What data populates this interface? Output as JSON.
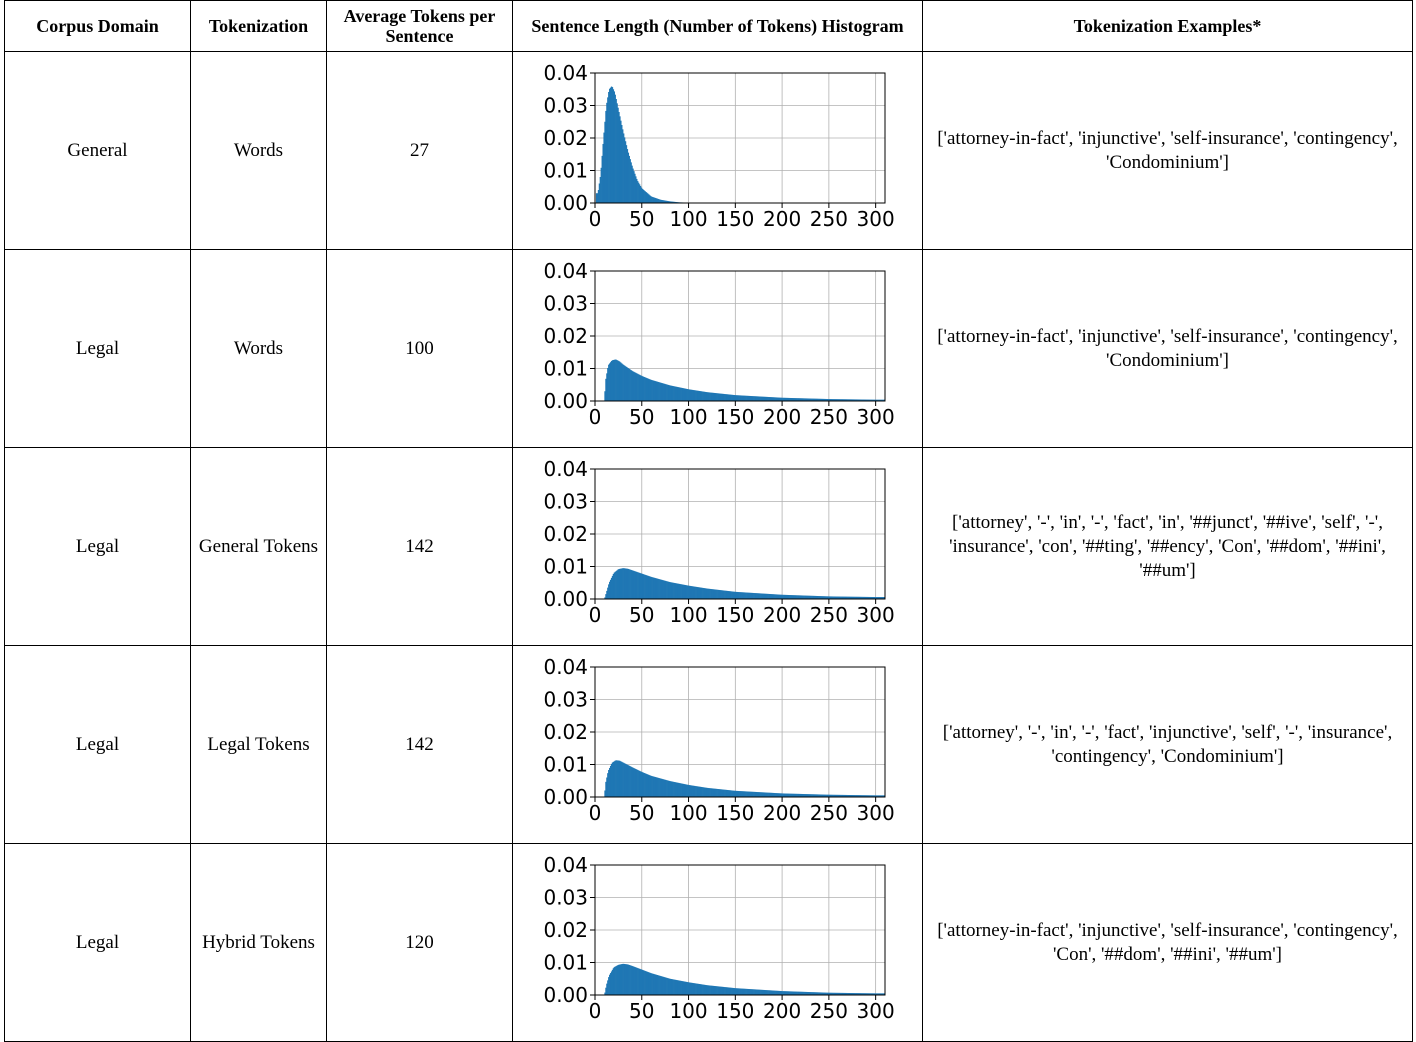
{
  "table": {
    "headers": [
      "Corpus Domain",
      "Tokenization",
      "Average Tokens per Sentence",
      "Sentence Length (Number of Tokens) Histogram",
      "Tokenization Examples*"
    ],
    "rows": [
      {
        "domain": "General",
        "tokenization": "Words",
        "avg_tokens": "27",
        "examples": "['attorney-in-fact', 'injunctive', 'self-insurance', 'contingency', 'Condominium']"
      },
      {
        "domain": "Legal",
        "tokenization": "Words",
        "avg_tokens": "100",
        "examples": "['attorney-in-fact', 'injunctive', 'self-insurance', 'contingency', 'Condominium']"
      },
      {
        "domain": "Legal",
        "tokenization": "General Tokens",
        "avg_tokens": "142",
        "examples": "['attorney', '-', 'in', '-', 'fact', 'in', '##junct', '##ive', 'self', '-', 'insurance', 'con', '##ting', '##ency', 'Con', '##dom', '##ini', '##um']"
      },
      {
        "domain": "Legal",
        "tokenization": "Legal Tokens",
        "avg_tokens": "142",
        "examples": "['attorney', '-', 'in', '-', 'fact', 'injunctive', 'self', '-', 'insurance', 'contingency', 'Condominium']"
      },
      {
        "domain": "Legal",
        "tokenization": "Hybrid Tokens",
        "avg_tokens": "120",
        "examples": "['attorney-in-fact', 'injunctive', 'self-insurance', 'contingency', 'Con', '##dom', '##ini', '##um']"
      }
    ]
  },
  "chart_data": [
    {
      "type": "bar",
      "xlim": [
        0,
        310
      ],
      "ylim": [
        0,
        0.04
      ],
      "grid": true,
      "x_ticks": [
        0,
        50,
        100,
        150,
        200,
        250,
        300
      ],
      "y_ticks": [
        0.0,
        0.01,
        0.02,
        0.03,
        0.04
      ],
      "y_tick_labels": [
        "0.00",
        "0.01",
        "0.02",
        "0.03",
        "0.04"
      ],
      "color": "#1f77b4",
      "x": [
        3,
        6,
        9,
        12,
        15,
        18,
        21,
        24,
        27,
        30,
        35,
        40,
        45,
        50,
        60,
        70,
        80,
        90,
        100,
        120,
        310
      ],
      "values": [
        0.003,
        0.009,
        0.02,
        0.03,
        0.035,
        0.036,
        0.034,
        0.03,
        0.026,
        0.022,
        0.016,
        0.011,
        0.007,
        0.0045,
        0.002,
        0.001,
        0.0005,
        0.0002,
        0.0001,
        0.0,
        0.0
      ]
    },
    {
      "type": "bar",
      "xlim": [
        0,
        310
      ],
      "ylim": [
        0,
        0.04
      ],
      "grid": true,
      "x_ticks": [
        0,
        50,
        100,
        150,
        200,
        250,
        300
      ],
      "y_ticks": [
        0.0,
        0.01,
        0.02,
        0.03,
        0.04
      ],
      "y_tick_labels": [
        "0.00",
        "0.01",
        "0.02",
        "0.03",
        "0.04"
      ],
      "color": "#1f77b4",
      "x": [
        10,
        11,
        14,
        18,
        22,
        26,
        30,
        40,
        50,
        60,
        80,
        100,
        120,
        150,
        200,
        250,
        300,
        310
      ],
      "values": [
        0.0,
        0.006,
        0.011,
        0.0125,
        0.0128,
        0.0122,
        0.0112,
        0.0092,
        0.0077,
        0.0065,
        0.0048,
        0.0036,
        0.0027,
        0.0018,
        0.001,
        0.0006,
        0.0004,
        0.0004
      ]
    },
    {
      "type": "bar",
      "xlim": [
        0,
        310
      ],
      "ylim": [
        0,
        0.04
      ],
      "grid": true,
      "x_ticks": [
        0,
        50,
        100,
        150,
        200,
        250,
        300
      ],
      "y_ticks": [
        0.0,
        0.01,
        0.02,
        0.03,
        0.04
      ],
      "y_tick_labels": [
        "0.00",
        "0.01",
        "0.02",
        "0.03",
        "0.04"
      ],
      "color": "#1f77b4",
      "x": [
        10,
        12,
        15,
        20,
        25,
        30,
        35,
        40,
        50,
        60,
        80,
        100,
        120,
        150,
        200,
        250,
        300,
        310
      ],
      "values": [
        0.0,
        0.002,
        0.005,
        0.008,
        0.0092,
        0.0095,
        0.0093,
        0.0088,
        0.0078,
        0.0068,
        0.0052,
        0.0041,
        0.0032,
        0.0022,
        0.0013,
        0.0008,
        0.0006,
        0.0006
      ]
    },
    {
      "type": "bar",
      "xlim": [
        0,
        310
      ],
      "ylim": [
        0,
        0.04
      ],
      "grid": true,
      "x_ticks": [
        0,
        50,
        100,
        150,
        200,
        250,
        300
      ],
      "y_ticks": [
        0.0,
        0.01,
        0.02,
        0.03,
        0.04
      ],
      "y_tick_labels": [
        "0.00",
        "0.01",
        "0.02",
        "0.03",
        "0.04"
      ],
      "color": "#1f77b4",
      "x": [
        10,
        11,
        14,
        18,
        22,
        26,
        30,
        40,
        50,
        60,
        80,
        100,
        120,
        150,
        200,
        250,
        300,
        310
      ],
      "values": [
        0.0,
        0.004,
        0.008,
        0.0105,
        0.0113,
        0.0112,
        0.0106,
        0.0091,
        0.0077,
        0.0065,
        0.0049,
        0.0037,
        0.0028,
        0.0019,
        0.0011,
        0.0007,
        0.0005,
        0.0005
      ]
    },
    {
      "type": "bar",
      "xlim": [
        0,
        310
      ],
      "ylim": [
        0,
        0.04
      ],
      "grid": true,
      "x_ticks": [
        0,
        50,
        100,
        150,
        200,
        250,
        300
      ],
      "y_ticks": [
        0.0,
        0.01,
        0.02,
        0.03,
        0.04
      ],
      "y_tick_labels": [
        "0.00",
        "0.01",
        "0.02",
        "0.03",
        "0.04"
      ],
      "color": "#1f77b4",
      "x": [
        10,
        12,
        15,
        20,
        25,
        30,
        35,
        40,
        50,
        60,
        80,
        100,
        120,
        150,
        200,
        250,
        300,
        310
      ],
      "values": [
        0.0,
        0.003,
        0.006,
        0.0085,
        0.0093,
        0.0096,
        0.0094,
        0.0089,
        0.0078,
        0.0067,
        0.005,
        0.0039,
        0.003,
        0.0021,
        0.0012,
        0.0007,
        0.0005,
        0.0005
      ]
    }
  ]
}
